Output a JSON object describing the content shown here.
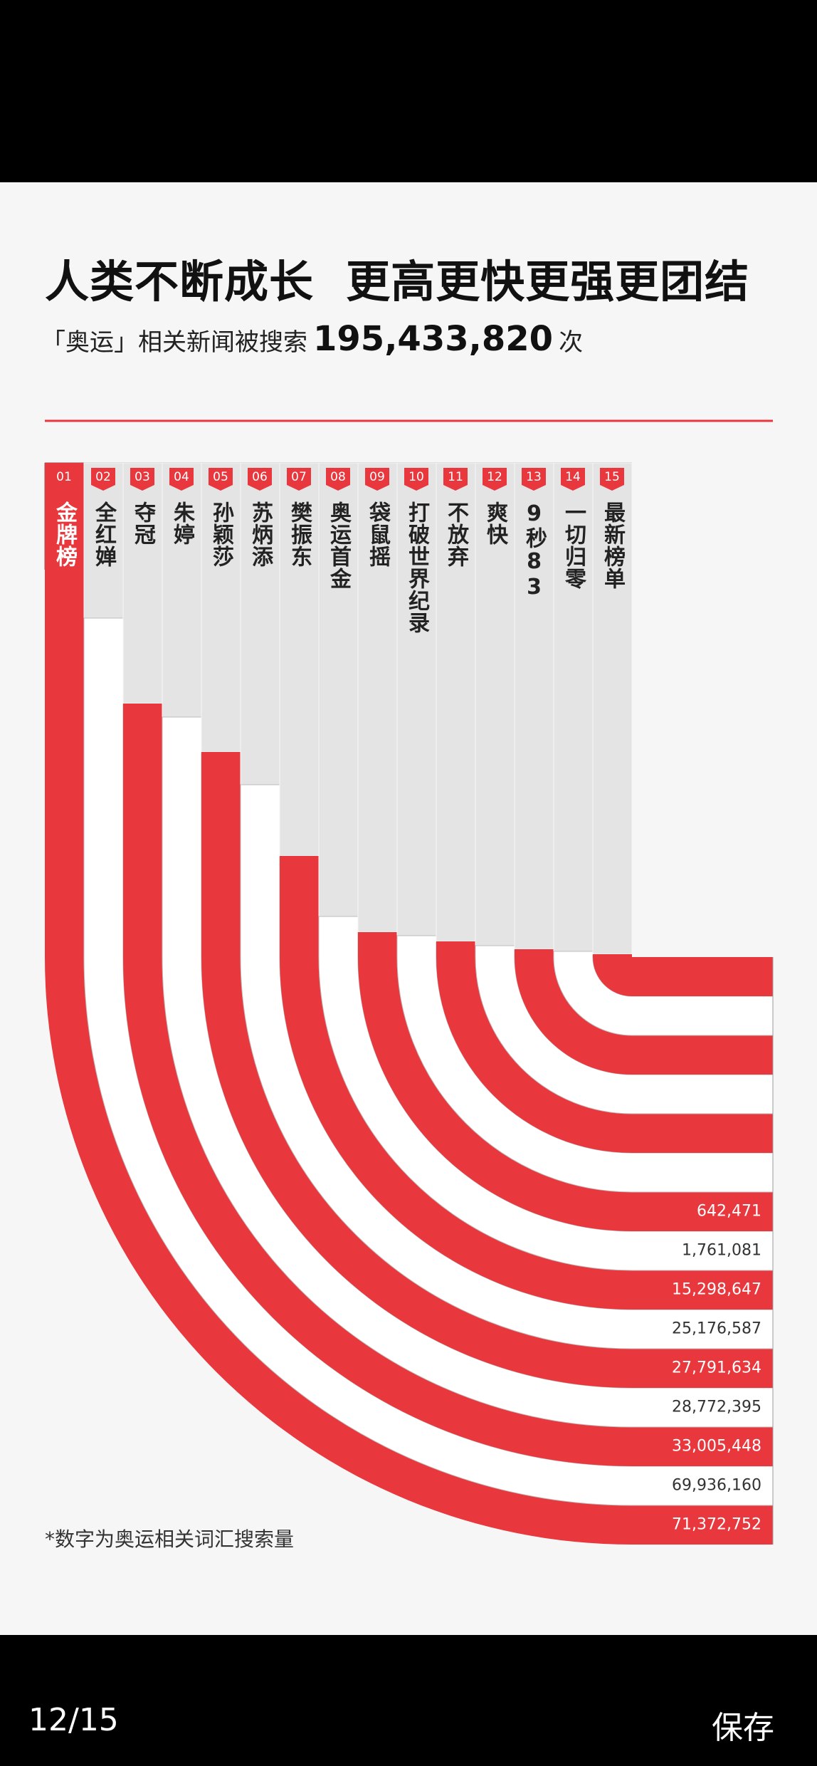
{
  "header": {
    "title": "人类不断成长  更高更快更强更团结",
    "subtitle_prefix": "「奥运」相关新闻被搜索",
    "total": "195,433,820",
    "subtitle_suffix": "次"
  },
  "items": [
    {
      "rank": "01",
      "name": "金牌榜",
      "value": "71,372,752"
    },
    {
      "rank": "02",
      "name": "全红婵",
      "value": "69,936,160"
    },
    {
      "rank": "03",
      "name": "夺冠",
      "value": "33,005,448"
    },
    {
      "rank": "04",
      "name": "朱婷",
      "value": "28,772,395"
    },
    {
      "rank": "05",
      "name": "孙颖莎",
      "value": "27,791,634"
    },
    {
      "rank": "06",
      "name": "苏炳添",
      "value": "25,176,587"
    },
    {
      "rank": "07",
      "name": "樊振东",
      "value": "15,298,647"
    },
    {
      "rank": "08",
      "name": "奥运首金",
      "value": "1,761,081"
    },
    {
      "rank": "09",
      "name": "袋鼠摇",
      "value": "642,471"
    },
    {
      "rank": "10",
      "name": "打破世界纪录"
    },
    {
      "rank": "11",
      "name": "不放弃"
    },
    {
      "rank": "12",
      "name": "爽快"
    },
    {
      "rank": "13",
      "name": "9秒83"
    },
    {
      "rank": "14",
      "name": "一切归零"
    },
    {
      "rank": "15",
      "name": "最新榜单"
    }
  ],
  "footnote": "*数字为奥运相关词汇搜索量",
  "viewer": {
    "page": "12/15",
    "save": "保存"
  }
}
